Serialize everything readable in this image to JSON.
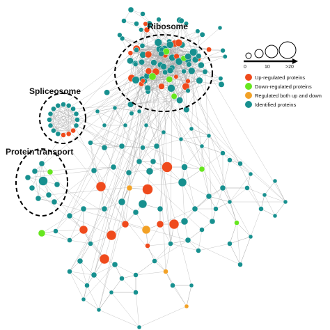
{
  "clusters": {
    "ribosome": "Ribosome",
    "spliceosome": "Spliceosome",
    "protein_transport": "Protein transport"
  },
  "legend": {
    "size_scale": {
      "ticks": [
        "0",
        "10",
        ">20"
      ]
    },
    "items": [
      {
        "key": "up",
        "label": "Up-regulated proteins",
        "color": "#ef4a1c"
      },
      {
        "key": "down",
        "label": "Down-regulated proteins",
        "color": "#66e61f"
      },
      {
        "key": "both",
        "label": "Regulated both up and down",
        "color": "#f2a126"
      },
      {
        "key": "identified",
        "label": "Identified proteins",
        "color": "#17908f"
      }
    ]
  },
  "colors": {
    "edge": "#a9a9a9",
    "node_stroke": "#ffffff",
    "cluster_outline": "#000000",
    "up": "#ef4a1c",
    "down": "#66e61f",
    "both": "#f2a126",
    "identified": "#17908f"
  }
}
